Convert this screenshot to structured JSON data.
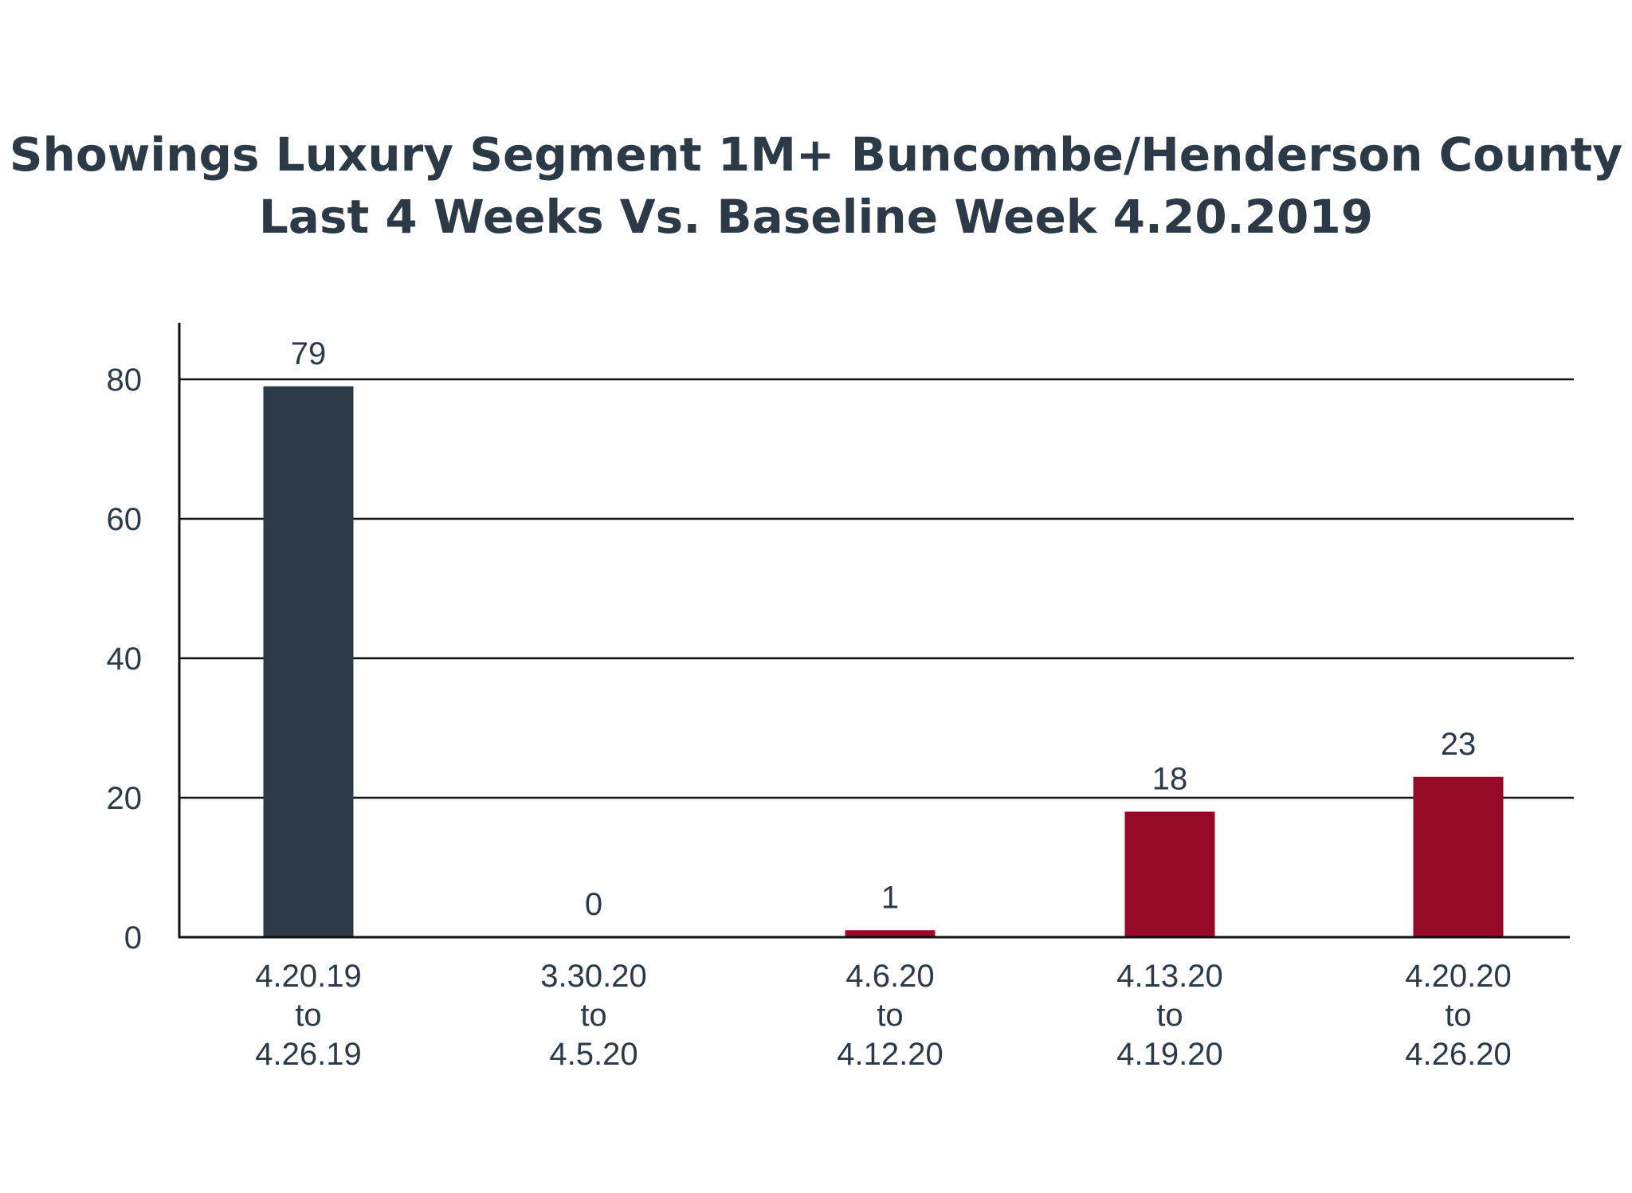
{
  "chart_data": {
    "type": "bar",
    "title_lines": [
      "Showings Luxury Segment 1M+ Buncombe/Henderson County",
      "Last 4 Weeks Vs. Baseline Week 4.20.2019"
    ],
    "xlabel": "",
    "ylabel": "",
    "categories": [
      [
        "4.20.19",
        "to",
        "4.26.19"
      ],
      [
        "3.30.20",
        "to",
        "4.5.20"
      ],
      [
        "4.6.20",
        "to",
        "4.12.20"
      ],
      [
        "4.13.20",
        "to",
        "4.19.20"
      ],
      [
        "4.20.20",
        "to",
        "4.26.20"
      ]
    ],
    "values": [
      79,
      0,
      1,
      18,
      23
    ],
    "data_labels": [
      "79",
      "0",
      "1",
      "18",
      "23"
    ],
    "bar_colors": [
      "#2c3a48",
      "#950a26",
      "#950a26",
      "#950a26",
      "#950a26"
    ],
    "ylim": [
      0,
      80
    ],
    "yticks": [
      0,
      20,
      40,
      60,
      80
    ],
    "grid": true,
    "legend": "none"
  }
}
